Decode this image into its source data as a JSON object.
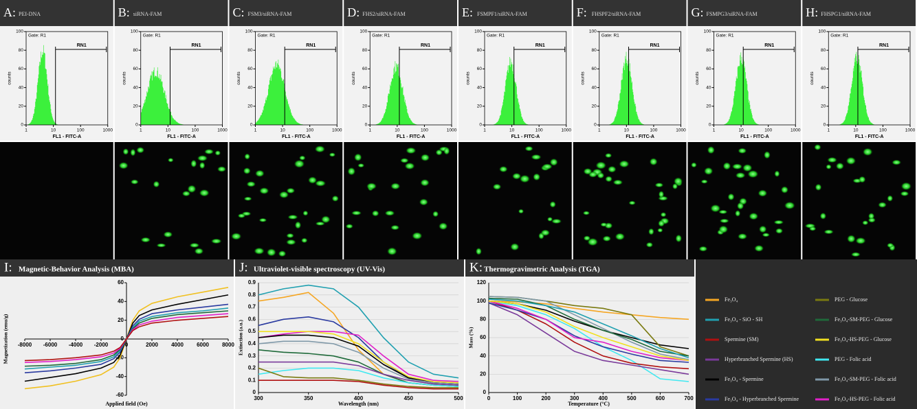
{
  "flow_panels": [
    {
      "letter": "A:",
      "title": "PEI-DNA",
      "peak": 4,
      "height": 88,
      "spread": 0.17
    },
    {
      "letter": "B:",
      "title": "siRNA-FAM",
      "peak": 3.5,
      "height": 64,
      "spread": 0.32
    },
    {
      "letter": "C:",
      "title": "FSM3/siRNA-FAM",
      "peak": 6,
      "height": 72,
      "spread": 0.3
    },
    {
      "letter": "D:",
      "title": "FHS2/siRNA-FAM",
      "peak": 9,
      "height": 70,
      "spread": 0.24
    },
    {
      "letter": "E:",
      "title": "FSMPF1/siRNA-FAM",
      "peak": 9,
      "height": 75,
      "spread": 0.2
    },
    {
      "letter": "F:",
      "title": "FHSPF2/siRNA-FAM",
      "peak": 10,
      "height": 80,
      "spread": 0.2
    },
    {
      "letter": "G:",
      "title": "FSMPG3/siRNA-FAM",
      "peak": 10,
      "height": 80,
      "spread": 0.2
    },
    {
      "letter": "H:",
      "title": "FHSPG1/siRNA-FAM",
      "peak": 11,
      "height": 80,
      "spread": 0.2
    }
  ],
  "flow_axes": {
    "gate": "Gate: R1",
    "marker": "RN1",
    "marker_range": [
      12,
      1000
    ],
    "y_label": "counts",
    "x_label": "FL1 - FITC-A",
    "x_log": true,
    "xlim": [
      1,
      1000
    ],
    "xticks": [
      1,
      10,
      100,
      1000
    ],
    "ylim": [
      0,
      100
    ],
    "yticks": [
      0,
      20,
      40,
      60,
      80,
      100
    ],
    "color": "#3cf03c"
  },
  "chart_data": [
    {
      "type": "line",
      "letter": "I:",
      "title": "Magnetic-Behavior Analysis (MBA)",
      "x_label": "Applied field (Oe)",
      "y_label": "Magnetization (emu/g)",
      "axes_cross_origin": true,
      "grid": false,
      "x": [
        -8000,
        -6000,
        -4000,
        -2000,
        -1000,
        -500,
        0,
        500,
        1000,
        2000,
        4000,
        6000,
        8000
      ],
      "xlim": [
        -8000,
        8000
      ],
      "xticks": [
        -8000,
        -6000,
        -4000,
        -2000,
        0,
        2000,
        4000,
        6000,
        8000
      ],
      "ylim": [
        -60,
        60
      ],
      "yticks": [
        -60,
        -40,
        -20,
        0,
        20,
        40,
        60
      ],
      "series": [
        {
          "color": "#f0c020",
          "values": [
            -53,
            -50,
            -45,
            -38,
            -30,
            -20,
            0,
            20,
            30,
            38,
            45,
            50,
            55
          ]
        },
        {
          "color": "#000000",
          "values": [
            -45,
            -41,
            -37,
            -31,
            -25,
            -17,
            0,
            17,
            25,
            31,
            37,
            42,
            47
          ]
        },
        {
          "color": "#2a3aa0",
          "values": [
            -36,
            -34,
            -31,
            -27,
            -21,
            -14,
            0,
            14,
            21,
            27,
            31,
            34,
            37
          ]
        },
        {
          "color": "#20a0b0",
          "values": [
            -32,
            -30,
            -28,
            -24,
            -19,
            -12,
            0,
            12,
            19,
            24,
            28,
            30,
            33
          ]
        },
        {
          "color": "#1f6a3a",
          "values": [
            -29,
            -28,
            -26,
            -22,
            -17,
            -11,
            0,
            11,
            17,
            22,
            26,
            28,
            30
          ]
        },
        {
          "color": "#e020c8",
          "values": [
            -25,
            -24,
            -22,
            -19,
            -15,
            -10,
            0,
            10,
            15,
            19,
            23,
            25,
            27
          ]
        },
        {
          "color": "#b01010",
          "values": [
            -23,
            -22,
            -20,
            -17,
            -13,
            -9,
            0,
            9,
            13,
            17,
            20,
            22,
            24
          ]
        }
      ]
    },
    {
      "type": "line",
      "letter": "J:",
      "title": "Ultraviolet-visible spectroscopy (UV-Vis)",
      "x_label": "Wavelength (nm)",
      "y_label": "Extinction (a.u.)",
      "axes_cross_origin": false,
      "grid": true,
      "x": [
        300,
        325,
        350,
        375,
        400,
        425,
        450,
        475,
        500
      ],
      "xlim": [
        300,
        500
      ],
      "xticks": [
        300,
        350,
        400,
        450,
        500
      ],
      "ylim": [
        0,
        0.9
      ],
      "yticks": [
        0,
        0.1,
        0.2,
        0.3,
        0.4,
        0.5,
        0.6,
        0.7,
        0.8,
        0.9
      ],
      "series": [
        {
          "color": "#20a0b0",
          "values": [
            0.8,
            0.85,
            0.88,
            0.85,
            0.7,
            0.45,
            0.25,
            0.15,
            0.12
          ]
        },
        {
          "color": "#f5a623",
          "values": [
            0.75,
            0.78,
            0.82,
            0.65,
            0.35,
            0.15,
            0.08,
            0.06,
            0.05
          ]
        },
        {
          "color": "#2a3aa0",
          "values": [
            0.55,
            0.6,
            0.62,
            0.58,
            0.45,
            0.25,
            0.12,
            0.08,
            0.07
          ]
        },
        {
          "color": "#e020c8",
          "values": [
            0.45,
            0.48,
            0.5,
            0.5,
            0.47,
            0.3,
            0.15,
            0.1,
            0.09
          ]
        },
        {
          "color": "#f0e020",
          "values": [
            0.5,
            0.5,
            0.5,
            0.48,
            0.4,
            0.25,
            0.13,
            0.09,
            0.08
          ]
        },
        {
          "color": "#000000",
          "values": [
            0.45,
            0.47,
            0.47,
            0.45,
            0.38,
            0.23,
            0.12,
            0.08,
            0.07
          ]
        },
        {
          "color": "#7f98a8",
          "values": [
            0.4,
            0.42,
            0.42,
            0.4,
            0.33,
            0.2,
            0.11,
            0.08,
            0.07
          ]
        },
        {
          "color": "#1f6a3a",
          "values": [
            0.35,
            0.33,
            0.32,
            0.3,
            0.25,
            0.15,
            0.08,
            0.06,
            0.05
          ]
        },
        {
          "color": "#7a3a9a",
          "values": [
            0.25,
            0.25,
            0.25,
            0.25,
            0.22,
            0.15,
            0.1,
            0.07,
            0.06
          ]
        },
        {
          "color": "#40e8f0",
          "values": [
            0.15,
            0.18,
            0.2,
            0.2,
            0.18,
            0.12,
            0.08,
            0.06,
            0.05
          ]
        },
        {
          "color": "#7a7a10",
          "values": [
            0.2,
            0.13,
            0.12,
            0.12,
            0.1,
            0.07,
            0.05,
            0.04,
            0.04
          ]
        },
        {
          "color": "#b01010",
          "values": [
            0.1,
            0.1,
            0.1,
            0.1,
            0.09,
            0.06,
            0.04,
            0.03,
            0.03
          ]
        }
      ]
    },
    {
      "type": "line",
      "letter": "K:",
      "title": "Thermogravimetric Analysis (TGA)",
      "x_label": "Temperature (°C)",
      "y_label": "Mass (%)",
      "axes_cross_origin": false,
      "grid": true,
      "x": [
        0,
        100,
        200,
        300,
        400,
        500,
        600,
        700
      ],
      "xlim": [
        0,
        700
      ],
      "xticks": [
        0,
        100,
        200,
        300,
        400,
        500,
        600,
        700
      ],
      "ylim": [
        0,
        120
      ],
      "yticks": [
        0,
        20,
        40,
        60,
        80,
        100,
        120
      ],
      "series": [
        {
          "color": "#f5a623",
          "values": [
            100,
            99,
            97,
            92,
            88,
            85,
            82,
            80
          ]
        },
        {
          "color": "#000000",
          "values": [
            100,
            97,
            90,
            78,
            68,
            60,
            52,
            48
          ]
        },
        {
          "color": "#7a7a10",
          "values": [
            105,
            104,
            100,
            95,
            92,
            85,
            50,
            40
          ]
        },
        {
          "color": "#40e8f0",
          "values": [
            100,
            95,
            85,
            70,
            50,
            35,
            15,
            12
          ]
        },
        {
          "color": "#7a3a9a",
          "values": [
            98,
            85,
            65,
            45,
            35,
            30,
            25,
            20
          ]
        },
        {
          "color": "#b01010",
          "values": [
            100,
            90,
            75,
            55,
            40,
            32,
            28,
            26
          ]
        },
        {
          "color": "#2a3aa0",
          "values": [
            98,
            90,
            80,
            62,
            50,
            42,
            35,
            33
          ]
        },
        {
          "color": "#e020c8",
          "values": [
            100,
            92,
            80,
            60,
            55,
            45,
            38,
            35
          ]
        },
        {
          "color": "#7f98a8",
          "values": [
            105,
            104,
            100,
            85,
            70,
            55,
            42,
            36
          ]
        },
        {
          "color": "#1f6a3a",
          "values": [
            103,
            102,
            95,
            80,
            68,
            58,
            45,
            40
          ]
        },
        {
          "color": "#f0e020",
          "values": [
            100,
            97,
            88,
            72,
            60,
            50,
            40,
            35
          ]
        },
        {
          "color": "#20a0b0",
          "values": [
            102,
            100,
            95,
            88,
            75,
            62,
            48,
            38
          ]
        }
      ]
    }
  ],
  "legend": [
    {
      "name": "Fe₃O₄",
      "color": "#f5a623"
    },
    {
      "name": "Fe₃O₄ - SiO - SH",
      "color": "#20a0b0"
    },
    {
      "name": "Spermine (SM)",
      "color": "#b01010"
    },
    {
      "name": "Hyperbranched Spermine (HS)",
      "color": "#7a3a9a"
    },
    {
      "name": "Fe₃O₄ - Spermine",
      "color": "#000000"
    },
    {
      "name": "Fe₃O₄ - Hyperbranched Spermine",
      "color": "#2a3aa0"
    },
    {
      "name": "PEG - Glucose",
      "color": "#7a7a10"
    },
    {
      "name": "Fe₃O₄-SM-PEG - Glucose",
      "color": "#1f6a3a"
    },
    {
      "name": "Fe₃O₄-HS-PEG - Glucose",
      "color": "#f0e020"
    },
    {
      "name": "PEG - Folic acid",
      "color": "#40e8f0"
    },
    {
      "name": "Fe₃O₄-SM-PEG - Folic acid",
      "color": "#7f98a8"
    },
    {
      "name": "Fe₃O₄-HS-PEG - Folic acid",
      "color": "#e020c8"
    }
  ]
}
